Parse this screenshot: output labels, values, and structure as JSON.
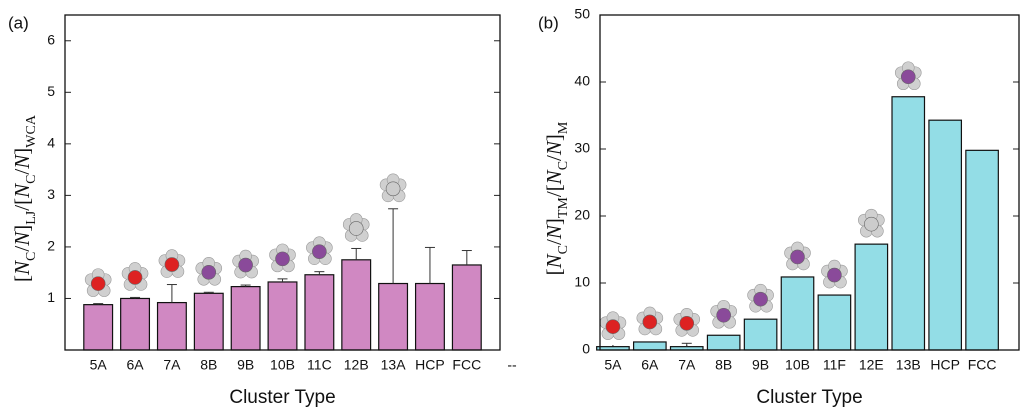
{
  "chart_data": [
    {
      "type": "bar",
      "panel_label": "(a)",
      "xlabel": "Cluster Type",
      "ylabel": [
        {
          "text": "["
        },
        {
          "text": "N",
          "italic": true
        },
        {
          "text": "C",
          "sub": true
        },
        {
          "text": "/"
        },
        {
          "text": "N",
          "italic": true
        },
        {
          "text": "]"
        },
        {
          "text": "LJ",
          "sub": true
        },
        {
          "text": "/["
        },
        {
          "text": "N",
          "italic": true
        },
        {
          "text": "C",
          "sub": true
        },
        {
          "text": "/"
        },
        {
          "text": "N",
          "italic": true
        },
        {
          "text": "]"
        },
        {
          "text": "WCA",
          "sub": true
        }
      ],
      "categories": [
        "5A",
        "6A",
        "7A",
        "8B",
        "9B",
        "10B",
        "11C",
        "12B",
        "13A",
        "HCP",
        "FCC"
      ],
      "extra_x_label": "--",
      "values": [
        0.88,
        1.0,
        0.92,
        1.1,
        1.23,
        1.32,
        1.46,
        1.75,
        1.29,
        1.29,
        1.65
      ],
      "errors": [
        0.02,
        0.02,
        0.35,
        0.02,
        0.03,
        0.06,
        0.06,
        0.22,
        1.45,
        0.7,
        0.28
      ],
      "color": "#d088c2",
      "ylim": [
        0,
        6.5
      ],
      "yticks": [
        1,
        2,
        3,
        4,
        5,
        6
      ]
    },
    {
      "type": "bar",
      "panel_label": "(b)",
      "xlabel": "Cluster Type",
      "ylabel": [
        {
          "text": "["
        },
        {
          "text": "N",
          "italic": true
        },
        {
          "text": "C",
          "sub": true
        },
        {
          "text": "/"
        },
        {
          "text": "N",
          "italic": true
        },
        {
          "text": "]"
        },
        {
          "text": "TM",
          "sub": true
        },
        {
          "text": "/["
        },
        {
          "text": "N",
          "italic": true
        },
        {
          "text": "C",
          "sub": true
        },
        {
          "text": "/"
        },
        {
          "text": "N",
          "italic": true
        },
        {
          "text": "]"
        },
        {
          "text": "M",
          "sub": true
        }
      ],
      "categories": [
        "5A",
        "6A",
        "7A",
        "8B",
        "9B",
        "10B",
        "11F",
        "12E",
        "13B",
        "HCP",
        "FCC"
      ],
      "values": [
        0.5,
        1.2,
        0.5,
        2.2,
        4.6,
        10.9,
        8.2,
        15.8,
        37.8,
        34.3,
        29.8
      ],
      "errors": [
        null,
        null,
        0.5,
        null,
        null,
        null,
        null,
        null,
        null,
        null,
        null
      ],
      "color": "#93dde6",
      "ylim": [
        0,
        50
      ],
      "yticks": [
        0,
        10,
        20,
        30,
        40,
        50
      ]
    }
  ]
}
